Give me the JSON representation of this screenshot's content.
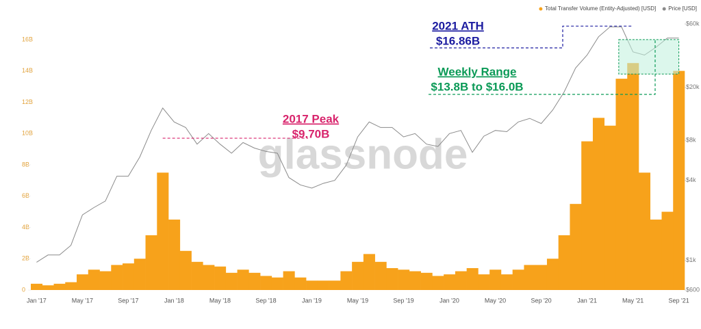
{
  "chart_data": {
    "type": "bar",
    "watermark": "glassnode",
    "legend": "top-right",
    "grid": false,
    "categories": [
      "Jan '17",
      null,
      null,
      null,
      "May '17",
      null,
      null,
      null,
      "Sep '17",
      null,
      null,
      null,
      "Jan '18",
      null,
      null,
      null,
      "May '18",
      null,
      null,
      null,
      "Sep '18",
      null,
      null,
      null,
      "Jan '19",
      null,
      null,
      null,
      "May '19",
      null,
      null,
      null,
      "Sep '19",
      null,
      null,
      null,
      "Jan '20",
      null,
      null,
      null,
      "May '20",
      null,
      null,
      null,
      "Sep '20",
      null,
      null,
      null,
      "Jan '21",
      null,
      null,
      null,
      "May '21",
      null,
      null,
      null,
      "Sep '21"
    ],
    "series": [
      {
        "name": "Total Transfer Volume (Entity-Adjusted) [USD]",
        "type": "bar",
        "color": "#f7a21b",
        "values": [
          0.4,
          0.3,
          0.4,
          0.5,
          1.0,
          1.3,
          1.2,
          1.6,
          1.7,
          2.0,
          3.5,
          7.5,
          4.5,
          2.5,
          1.8,
          1.6,
          1.5,
          1.1,
          1.3,
          1.1,
          0.9,
          0.8,
          1.2,
          0.8,
          0.6,
          0.6,
          0.6,
          1.2,
          1.8,
          2.3,
          1.8,
          1.4,
          1.3,
          1.2,
          1.1,
          0.9,
          1.0,
          1.2,
          1.4,
          1.0,
          1.3,
          1.0,
          1.3,
          1.6,
          1.6,
          2.0,
          3.5,
          5.5,
          9.5,
          11.0,
          10.5,
          13.5,
          14.5,
          7.5,
          4.5,
          5.0,
          14.0
        ]
      },
      {
        "name": "Price [USD]",
        "type": "line",
        "axis": "y2",
        "color": "#8a8a8a",
        "values": [
          970,
          1100,
          1100,
          1300,
          2200,
          2500,
          2800,
          4300,
          4300,
          6000,
          9500,
          14000,
          11000,
          10000,
          7500,
          9000,
          7500,
          6400,
          7700,
          7000,
          6600,
          6400,
          4200,
          3700,
          3500,
          3800,
          4000,
          5200,
          8500,
          11000,
          10000,
          10000,
          8500,
          9000,
          7500,
          7200,
          9000,
          9500,
          6500,
          8600,
          9500,
          9300,
          11000,
          11700,
          10700,
          13500,
          18500,
          28000,
          35000,
          48000,
          57000,
          57000,
          37000,
          35000,
          40000,
          47000,
          47000
        ]
      }
    ],
    "ylim": [
      0,
      17
    ],
    "yticks": [
      0,
      {
        "value": 2,
        "label": "2B"
      },
      {
        "value": 4,
        "label": "4B"
      },
      {
        "value": 6,
        "label": "6B"
      },
      {
        "value": 8,
        "label": "8B"
      },
      {
        "value": 10,
        "label": "10B"
      },
      {
        "value": 12,
        "label": "12B"
      },
      {
        "value": 14,
        "label": "14B"
      },
      {
        "value": 16,
        "label": "16B"
      }
    ],
    "y2lim": [
      600,
      60000
    ],
    "y2log": true,
    "y2ticks": [
      {
        "value": 600,
        "label": "$600"
      },
      {
        "value": 1000,
        "label": "$1k"
      },
      {
        "value": 4000,
        "label": "$4k"
      },
      {
        "value": 8000,
        "label": "$8k"
      },
      {
        "value": 20000,
        "label": "$20k"
      },
      {
        "value": 60000,
        "label": "$60k"
      }
    ],
    "annotations": [
      {
        "title": "2021 ATH",
        "label": "$16.86B",
        "value": 16.86,
        "color": "#1c1ca0"
      },
      {
        "title": "Weekly Range",
        "label": "$13.8B to $16.0B",
        "range": [
          13.8,
          16.0
        ],
        "color": "#0b9a57"
      },
      {
        "title": "2017 Peak",
        "label": "$9.70B",
        "value": 9.7,
        "color": "#d8246c"
      }
    ]
  }
}
